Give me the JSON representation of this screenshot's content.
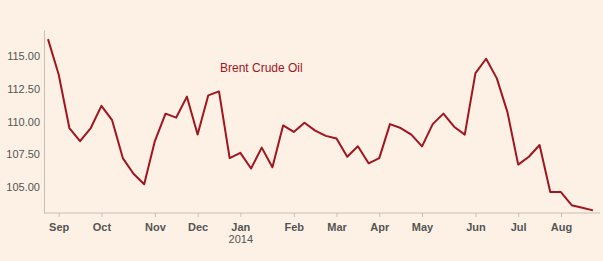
{
  "chart_data": {
    "type": "line",
    "categories": [
      null,
      "Sep",
      null,
      null,
      null,
      "Oct",
      null,
      null,
      null,
      null,
      "Nov",
      null,
      null,
      null,
      "Dec",
      null,
      null,
      null,
      "Jan\n2014",
      null,
      null,
      null,
      null,
      "Feb",
      null,
      null,
      null,
      "Mar",
      null,
      null,
      null,
      "Apr",
      null,
      null,
      null,
      "May",
      null,
      null,
      null,
      null,
      "Jun",
      null,
      null,
      null,
      "Jul",
      null,
      null,
      null,
      "Aug",
      null,
      null,
      null
    ],
    "series": [
      {
        "name": "Brent Crude Oil",
        "color": "#a0151f",
        "values": [
          116.3,
          113.6,
          109.5,
          108.5,
          109.5,
          111.2,
          110.1,
          107.2,
          106.0,
          105.2,
          108.5,
          110.6,
          110.3,
          111.9,
          109.0,
          112.0,
          112.3,
          107.2,
          107.6,
          106.4,
          108.0,
          106.5,
          109.7,
          109.2,
          109.9,
          109.3,
          108.9,
          108.7,
          107.3,
          108.1,
          106.8,
          107.2,
          109.8,
          109.5,
          109.0,
          108.1,
          109.8,
          110.6,
          109.6,
          109.0,
          113.7,
          114.8,
          113.3,
          110.7,
          106.7,
          107.3,
          108.2,
          104.6,
          104.6,
          103.6,
          103.4,
          103.2
        ]
      }
    ],
    "ylim": [
      103,
      117
    ],
    "yticks": [
      {
        "value": 105,
        "label": "105.00"
      },
      {
        "value": 107.5,
        "label": "107.50"
      },
      {
        "value": 110,
        "label": "110.00"
      },
      {
        "value": 112.5,
        "label": "112.50"
      },
      {
        "value": 115,
        "label": "115.00"
      }
    ],
    "grid": false
  }
}
